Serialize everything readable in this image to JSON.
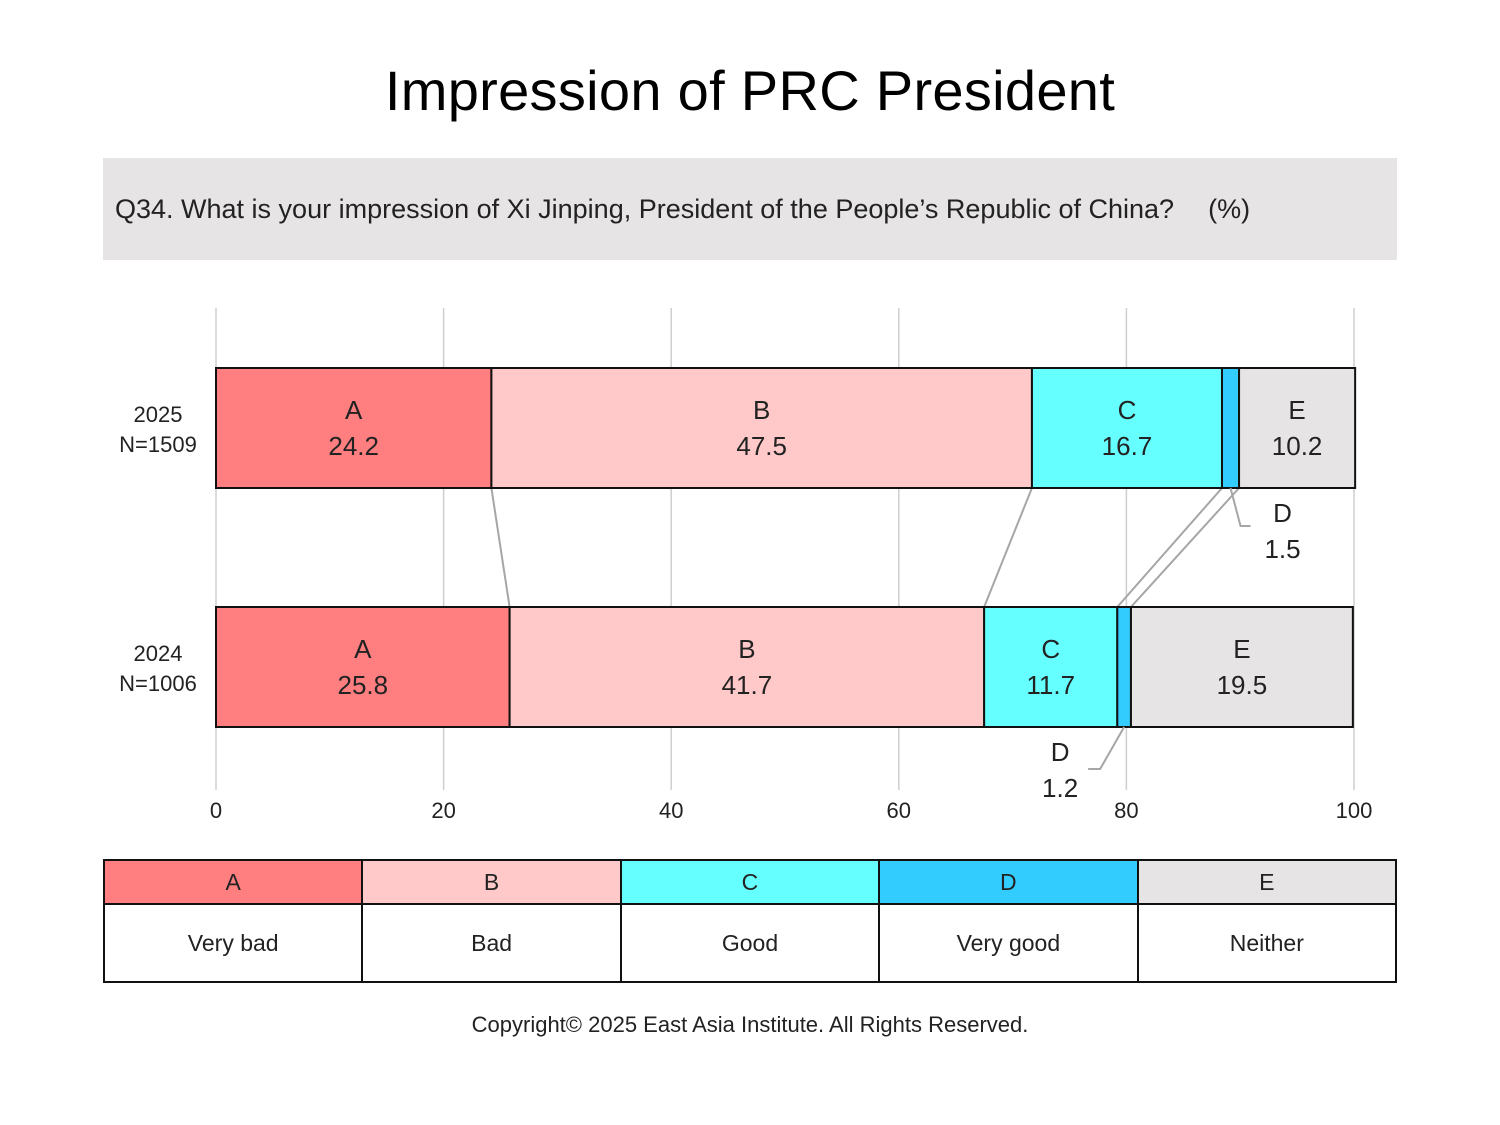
{
  "title": "Impression of PRC President",
  "question": {
    "text": "Q34. What is your impression of Xi Jinping, President of the People’s Republic of China?",
    "unit": "(%)"
  },
  "chart_data": {
    "type": "bar",
    "orientation": "horizontal",
    "stacked": true,
    "xlim": [
      0,
      100
    ],
    "xticks": [
      0,
      20,
      40,
      60,
      80,
      100
    ],
    "grid": true,
    "categories": [
      {
        "year": "2025",
        "n": "N=1509"
      },
      {
        "year": "2024",
        "n": "N=1006"
      }
    ],
    "series": [
      {
        "code": "A",
        "name": "Very bad",
        "color": "#ff7f81",
        "values": [
          24.2,
          25.8
        ]
      },
      {
        "code": "B",
        "name": "Bad",
        "color": "#fec9c8",
        "values": [
          47.5,
          41.7
        ]
      },
      {
        "code": "C",
        "name": "Good",
        "color": "#66ffff",
        "values": [
          16.7,
          11.7
        ]
      },
      {
        "code": "D",
        "name": "Very good",
        "color": "#33ccff",
        "values": [
          1.5,
          1.2
        ]
      },
      {
        "code": "E",
        "name": "Neither",
        "color": "#e6e4e5",
        "values": [
          10.2,
          19.5
        ]
      }
    ]
  },
  "footer": {
    "copyright": "Copyright© 2025 East Asia Institute. All Rights Reserved."
  }
}
